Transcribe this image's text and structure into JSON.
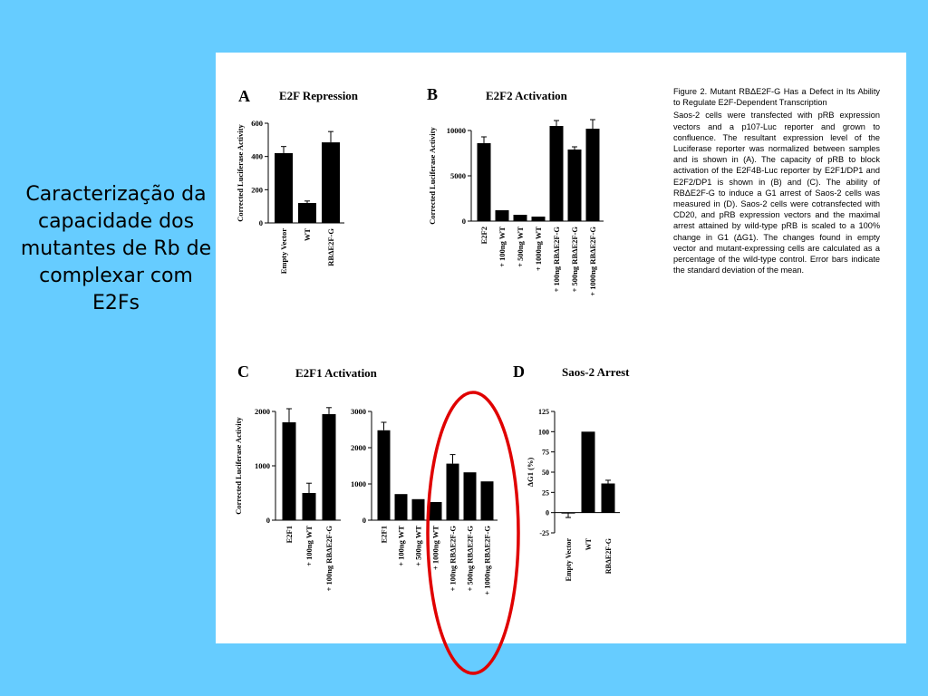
{
  "slide": {
    "title": "Caracterização da capacidade dos mutantes de Rb de complexar com E2Fs",
    "background_color": "#66ccff",
    "highlight_color": "#e00000"
  },
  "figure": {
    "caption_title": "Figure 2. Mutant RBΔE2F-G Has a Defect in Its Ability to Regulate E2F-Dependent Transcription",
    "caption_body": "Saos-2 cells were transfected with pRB expression vectors and a p107-Luc reporter and grown to confluence. The resultant expression level of the Luciferase reporter was normalized between samples and is shown in (A). The capacity of pRB to block activation of the E2F4B-Luc reporter by E2F1/DP1 and E2F2/DP1 is shown in (B) and (C). The ability of RBΔE2F-G to induce a G1 arrest of Saos-2 cells was measured in (D). Saos-2 cells were cotransfected with CD20, and pRB expression vectors and the maximal arrest attained by wild-type pRB is scaled to a 100% change in G1 (ΔG1). The changes found in empty vector and mutant-expressing cells are calculated as a percentage of the wild-type control. Error bars indicate the standard deviation of the mean."
  },
  "panels": {
    "A": {
      "letter": "A",
      "title": "E2F Repression"
    },
    "B": {
      "letter": "B",
      "title": "E2F2 Activation"
    },
    "C": {
      "letter": "C",
      "title": "E2F1 Activation"
    },
    "D": {
      "letter": "D",
      "title": "Saos-2 Arrest"
    }
  },
  "chart_data": [
    {
      "id": "A",
      "type": "bar",
      "title": "E2F Repression",
      "ylabel": "Corrected Luciferase Activity",
      "ylim": [
        0,
        600
      ],
      "yticks": [
        0,
        200,
        400,
        600
      ],
      "categories": [
        "Empty Vector",
        "WT",
        "RBΔE2F-G"
      ],
      "values": [
        420,
        120,
        485
      ],
      "errors": [
        40,
        12,
        65
      ]
    },
    {
      "id": "B",
      "type": "bar",
      "title": "E2F2 Activation",
      "ylabel": "Corrected Luciferase Activity",
      "ylim": [
        0,
        10000
      ],
      "yticks": [
        0,
        5000,
        10000
      ],
      "categories": [
        "E2F2",
        "+ 100ng WT",
        "+ 500ng WT",
        "+ 1000ng WT",
        "+ 100ng RBΔE2F-G",
        "+ 500ng RBΔE2F-G",
        "+ 1000ng RBΔE2F-G"
      ],
      "values": [
        8600,
        1200,
        700,
        500,
        10500,
        7900,
        10200
      ],
      "errors": [
        700,
        0,
        0,
        0,
        600,
        300,
        1000
      ]
    },
    {
      "id": "C1",
      "type": "bar",
      "title": "E2F1 Activation",
      "ylabel": "Corrected Luciferase Activity",
      "ylim": [
        0,
        2000
      ],
      "yticks": [
        0,
        1000,
        2000
      ],
      "categories": [
        "E2F1",
        "+ 100ng WT",
        "+ 100ng RBΔE2F-G"
      ],
      "values": [
        1800,
        500,
        1950
      ],
      "errors": [
        250,
        180,
        120
      ]
    },
    {
      "id": "C2",
      "type": "bar",
      "ylim": [
        0,
        3000
      ],
      "yticks": [
        0,
        1000,
        2000,
        3000
      ],
      "categories": [
        "E2F1",
        "+ 100ng WT",
        "+ 500ng WT",
        "+ 1000ng WT",
        "+ 100ng RBΔE2F-G",
        "+ 500ng RBΔE2F-G",
        "+ 1000ng RBΔE2F-G"
      ],
      "values": [
        2480,
        720,
        580,
        500,
        1560,
        1320,
        1070
      ],
      "errors": [
        220,
        0,
        0,
        0,
        250,
        0,
        0
      ]
    },
    {
      "id": "D",
      "type": "bar",
      "title": "Saos-2 Arrest",
      "ylabel": "ΔG1 (%)",
      "ylim": [
        -25,
        125
      ],
      "yticks": [
        -25,
        0,
        25,
        50,
        75,
        100,
        125
      ],
      "categories": [
        "Empty Vector",
        "WT",
        "RBΔE2F-G"
      ],
      "values": [
        -1,
        100,
        36
      ],
      "errors": [
        5,
        0,
        4
      ]
    }
  ]
}
